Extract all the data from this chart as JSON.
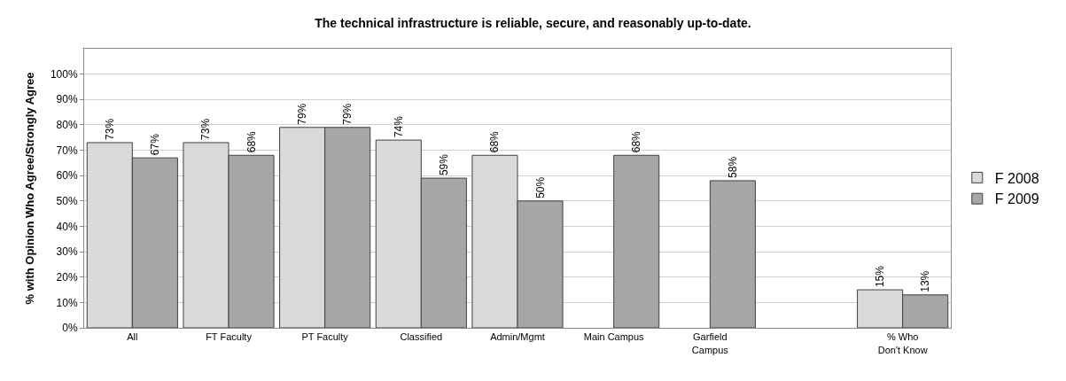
{
  "chart_data": {
    "type": "bar",
    "title": "The technical infrastructure is reliable, secure, and reasonably up-to-date.",
    "ylabel": "% with Opinion Who Agree/Strongly Agree",
    "categories": [
      "All",
      "FT Faculty",
      "PT Faculty",
      "Classified",
      "Admin/Mgmt",
      "Main Campus",
      "Garfield Campus",
      null,
      "% Who Don't Know"
    ],
    "series": [
      {
        "name": "F 2008",
        "color": "#d9d9d9",
        "values": [
          73,
          73,
          79,
          74,
          68,
          null,
          null,
          null,
          15
        ],
        "value_labels": [
          "73%",
          "73%",
          "79%",
          "74%",
          "68%",
          null,
          null,
          null,
          "15%"
        ]
      },
      {
        "name": "F 2009",
        "color": "#a6a6a6",
        "values": [
          67,
          68,
          79,
          59,
          50,
          68,
          58,
          null,
          13
        ],
        "value_labels": [
          "67%",
          "68%",
          "79%",
          "59%",
          "50%",
          "68%",
          "58%",
          null,
          "13%"
        ]
      }
    ],
    "ylim": [
      0,
      110
    ],
    "yticks": [
      {
        "value": 0,
        "label": "0%"
      },
      {
        "value": 10,
        "label": "10%"
      },
      {
        "value": 20,
        "label": "20%"
      },
      {
        "value": 30,
        "label": "30%"
      },
      {
        "value": 40,
        "label": "40%"
      },
      {
        "value": 50,
        "label": "50%"
      },
      {
        "value": 60,
        "label": "60%"
      },
      {
        "value": 70,
        "label": "70%"
      },
      {
        "value": 80,
        "label": "80%"
      },
      {
        "value": 90,
        "label": "90%"
      },
      {
        "value": 100,
        "label": "100%"
      }
    ],
    "grid": "y",
    "legend": "right"
  }
}
